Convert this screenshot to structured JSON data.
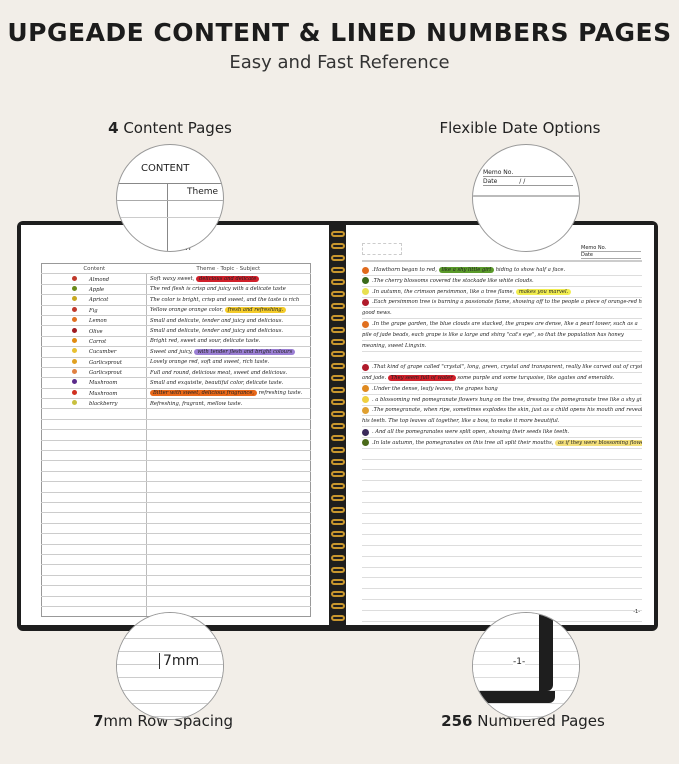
{
  "header": {
    "title": "UPGEADE CONTENT & LINED NUMBERS PAGES",
    "subtitle": "Easy and Fast Reference"
  },
  "features": {
    "top_left": {
      "bold": "4",
      "text": " Content Pages"
    },
    "top_right": {
      "text": "Flexible Date Options"
    },
    "bottom_left": {
      "bold": "7",
      "text": "mm Row Spacing"
    },
    "bottom_right": {
      "bold": "256",
      "text": " Numbered Pages"
    }
  },
  "zoom_circles": {
    "content_title": "CONTENT",
    "theme": "Theme",
    "memo": "Memo No.",
    "date": "Date",
    "date_sep": "/     /",
    "spacing": "7mm",
    "page_num": "-1-"
  },
  "left_page": {
    "title": "CONTENT",
    "col1": "Content",
    "col2": "Theme · Topic · Subject",
    "rows": [
      {
        "name": "Almond",
        "text": "Soft waxy sweet, ",
        "hl": "delicious and delicate",
        "hl_color": "#d0202a",
        "after": ""
      },
      {
        "name": "Apple",
        "text": "The red flesh is crisp and juicy with a delicate taste",
        "hl": "",
        "after": ""
      },
      {
        "name": "Apricot",
        "text": "The color is bright, crisp and sweet, and the taste is rich",
        "hl": "",
        "after": ""
      },
      {
        "name": "Fig",
        "text": "Yellow orange orange color, ",
        "hl": "fresh and refreshing.",
        "hl_color": "#f4cc2a",
        "after": ""
      },
      {
        "name": "Lemon",
        "text": "Small and delicate, tender and juicy and delicious.",
        "hl": "",
        "after": ""
      },
      {
        "name": "Olive",
        "text": "Small and delicate, tender and juicy and delicious.",
        "hl": "",
        "after": ""
      },
      {
        "name": "Carrot",
        "text": "Bright red, sweet and sour, delicate taste.",
        "hl": "",
        "after": ""
      },
      {
        "name": "Cucumber",
        "text": "Sweet and juicy, ",
        "hl": "with tender flesh and bright colours",
        "hl_color": "#9b7fd4",
        "after": ""
      },
      {
        "name": "Garlicsprout",
        "text": "Lovely orange red, soft and sweet, rich taste.",
        "hl": "",
        "after": ""
      },
      {
        "name": "Garlicsprout",
        "text": "Full and round, delicious meat, sweet and delicious.",
        "hl": "",
        "after": ""
      },
      {
        "name": "Mushroom",
        "text": "Small and exquisite, beautiful color, delicate taste.",
        "hl": "",
        "after": ""
      },
      {
        "name": "Mushroom",
        "text": "",
        "hl": "Bitter with sweet, delicious fragrance,",
        "hl_color": "#e8681a",
        "after": " refreshing taste."
      },
      {
        "name": "blackberry",
        "text": "Refreshing, fragrant, mellow taste.",
        "hl": "",
        "after": ""
      }
    ]
  },
  "right_page": {
    "memo": "Memo No.",
    "date": "Date",
    "page_number": "-1-",
    "lines": [
      {
        "dot": "#e06a1c",
        "text": ".Hawthorn began to red, ",
        "hl": "like a shy little girl",
        "hl_color": "#5a9a2a",
        "after": " hiding to show half a face."
      },
      {
        "dot": "#3a6a1a",
        "text": ".The cherry blossoms covered the stockade like white clouds.",
        "hl": "",
        "after": ""
      },
      {
        "dot": "#e8e050",
        "text": ".In autumn, the crimson persimmon, like a tree flame, ",
        "hl": "makes you marvel.",
        "hl_color": "#f2ee50",
        "after": ""
      },
      {
        "dot": "#b01a2a",
        "text": ".Each persimmon tree is burning a passionate flame, showing off to the people a piece of orange-red harvest",
        "hl": "",
        "after": ""
      },
      {
        "dot": "",
        "text": "good news.",
        "hl": "",
        "after": ""
      },
      {
        "dot": "#e07020",
        "text": ".In the grape garden, the blue clouds are stacked, the grapes are dense, like a pearl tower, such as a",
        "hl": "",
        "after": ""
      },
      {
        "dot": "",
        "text": "pile of jade beads, each grape is like a large and shiny \"cat's eye\", so that the population has honey",
        "hl": "",
        "after": ""
      },
      {
        "dot": "",
        "text": "meaning, sweet Lingxin.",
        "hl": "",
        "after": ""
      },
      {
        "dot": "",
        "text": "",
        "hl": "",
        "after": ""
      },
      {
        "dot": "#b01a2a",
        "text": ".That kind of grape called \"crystal\", long, green, crystal and transparent, really like carved out of crystal",
        "hl": "",
        "after": ""
      },
      {
        "dot": "",
        "text": "and jade. ",
        "hl": "They seem full of water",
        "hl_color": "#d0202a",
        "after": " some purple and some turquoise, like agates and emeralds."
      },
      {
        "dot": "#e08a20",
        "text": ".Under the dense, leafy leaves, the grapes hang",
        "hl": "",
        "after": ""
      },
      {
        "dot": "#f0d040",
        "text": ". a blossoming red pomegranate flowers hung on the tree, dressing the pomegranate tree like a shy girl.",
        "hl": "",
        "after": ""
      },
      {
        "dot": "#e0a030",
        "text": ".The pomegranate, when ripe, sometimes explodes the skin, just as a child opens his mouth and reveals",
        "hl": "",
        "after": ""
      },
      {
        "dot": "",
        "text": "his teeth. The top leaves all together, like a bow, to make it more beautiful.",
        "hl": "",
        "after": ""
      },
      {
        "dot": "#3a2a5a",
        "text": ". And all the pomegranates were split open, showing their seeds like teeth.",
        "hl": "",
        "after": ""
      },
      {
        "dot": "#4a6a1a",
        "text": ".In late autumn, the pomegranates on this tree all split their mouths, ",
        "hl": "as if they were blossoming flowers.",
        "hl_color": "#f4e07a",
        "after": ""
      }
    ]
  },
  "colors": {
    "background": "#f2eee8",
    "cover": "#1e1e1e",
    "spiral": "#c8962e"
  }
}
